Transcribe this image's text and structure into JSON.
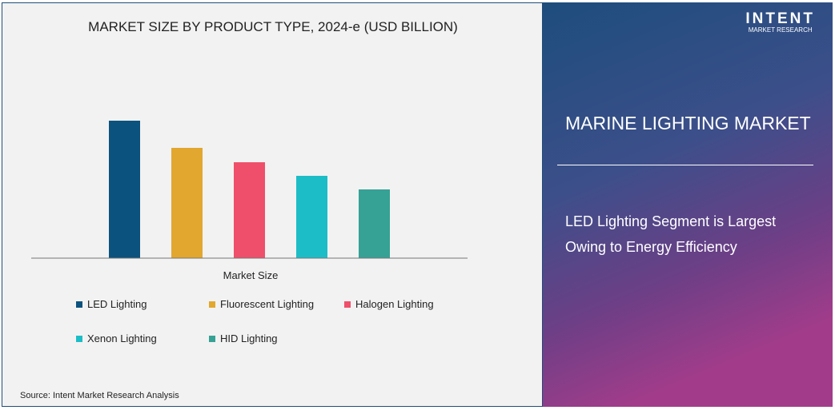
{
  "chart_data": {
    "type": "bar",
    "title": "MARKET SIZE BY PRODUCT TYPE, 2024-e (USD BILLION)",
    "categories": [
      "Market Size"
    ],
    "series": [
      {
        "name": "LED Lighting",
        "values": [
          172
        ],
        "color": "#0b527e"
      },
      {
        "name": "Fluorescent Lighting",
        "values": [
          138
        ],
        "color": "#e2a72e"
      },
      {
        "name": "Halogen Lighting",
        "values": [
          120
        ],
        "color": "#ef4f6a"
      },
      {
        "name": "Xenon Lighting",
        "values": [
          103
        ],
        "color": "#1dbdc7"
      },
      {
        "name": "HID Lighting",
        "values": [
          86
        ],
        "color": "#36a195"
      }
    ],
    "ylim": [
      0,
      172
    ],
    "grid": false,
    "legend": "bottom",
    "xlabel": "",
    "ylabel": ""
  },
  "source": "Source:  Intent Market Research Analysis",
  "panel": {
    "logo_name": "INTENT",
    "logo_sub": "MARKET RESEARCH",
    "title": "MARINE LIGHTING MARKET",
    "subtitle": "LED Lighting Segment is Largest Owing to Energy Efficiency"
  }
}
